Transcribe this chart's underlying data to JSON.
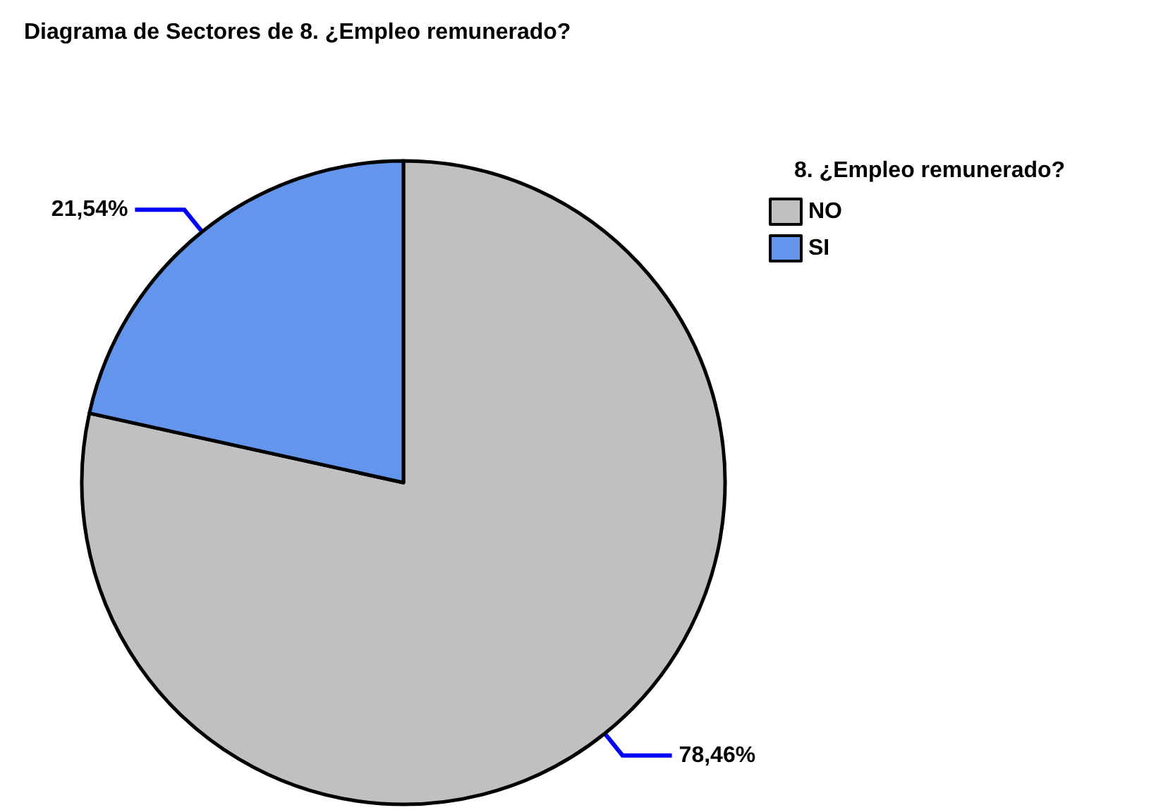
{
  "chart_data": {
    "type": "pie",
    "title": "Diagrama de Sectores de 8. ¿Empleo remunerado?",
    "legend_title": "8. ¿Empleo remunerado?",
    "categories": [
      "NO",
      "SI"
    ],
    "values": [
      78.46,
      21.54
    ],
    "colors": [
      "#c0c0c0",
      "#6495ed"
    ],
    "value_labels": [
      "78,46%",
      "21,54%"
    ],
    "legend": "top right"
  }
}
